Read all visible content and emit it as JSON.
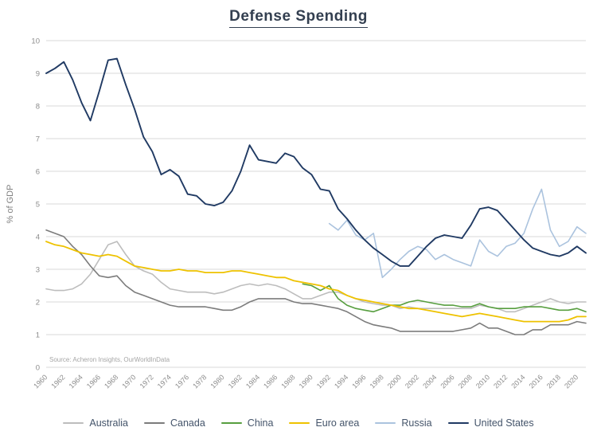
{
  "page": {
    "title": "Defense Spending",
    "source": "Source: Acheron Insights, OurWorldInData"
  },
  "chart_data": {
    "type": "line",
    "title": "Defense Spending",
    "xlabel": "",
    "ylabel": "% of GDP",
    "ylim": [
      0,
      10
    ],
    "y_ticks": [
      0,
      1,
      2,
      3,
      4,
      5,
      6,
      7,
      8,
      9,
      10
    ],
    "x_range": [
      1960,
      2021
    ],
    "x_tick_years": [
      1960,
      1962,
      1964,
      1966,
      1968,
      1970,
      1972,
      1974,
      1976,
      1978,
      1980,
      1982,
      1984,
      1986,
      1988,
      1990,
      1992,
      1994,
      1996,
      1998,
      2000,
      2002,
      2004,
      2006,
      2008,
      2010,
      2012,
      2014,
      2016,
      2018,
      2020
    ],
    "grid": "horizontal",
    "legend_position": "bottom",
    "appearance": {
      "grid_color": "#d9d9d9",
      "axis_text_color": "#8c8c8c",
      "ylabel_color": "#808080",
      "legend_text_color": "#44546a",
      "title_color": "#333f50",
      "source_color": "#a6a6a6"
    },
    "series": [
      {
        "name": "Australia",
        "color": "#bdbdbd",
        "stroke_width": 1.6,
        "start_year": 1960,
        "values": [
          2.4,
          2.35,
          2.35,
          2.4,
          2.55,
          2.85,
          3.3,
          3.75,
          3.85,
          3.45,
          3.1,
          2.95,
          2.85,
          2.6,
          2.4,
          2.35,
          2.3,
          2.3,
          2.3,
          2.25,
          2.3,
          2.4,
          2.5,
          2.55,
          2.5,
          2.55,
          2.5,
          2.4,
          2.25,
          2.1,
          2.1,
          2.2,
          2.3,
          2.3,
          2.2,
          2.1,
          2.0,
          1.95,
          1.9,
          1.9,
          1.8,
          1.85,
          1.8,
          1.8,
          1.8,
          1.8,
          1.8,
          1.8,
          1.8,
          1.9,
          1.85,
          1.8,
          1.7,
          1.7,
          1.8,
          1.9,
          2.0,
          2.1,
          2.0,
          1.95,
          2.0,
          2.0
        ]
      },
      {
        "name": "Canada",
        "color": "#7c7c7c",
        "stroke_width": 1.6,
        "start_year": 1960,
        "values": [
          4.2,
          4.1,
          4.0,
          3.7,
          3.45,
          3.1,
          2.8,
          2.75,
          2.8,
          2.5,
          2.3,
          2.2,
          2.1,
          2.0,
          1.9,
          1.85,
          1.85,
          1.85,
          1.85,
          1.8,
          1.75,
          1.75,
          1.85,
          2.0,
          2.1,
          2.1,
          2.1,
          2.1,
          2.0,
          1.95,
          1.95,
          1.9,
          1.85,
          1.8,
          1.7,
          1.55,
          1.4,
          1.3,
          1.25,
          1.2,
          1.1,
          1.1,
          1.1,
          1.1,
          1.1,
          1.1,
          1.1,
          1.15,
          1.2,
          1.35,
          1.2,
          1.2,
          1.1,
          1.0,
          1.0,
          1.15,
          1.15,
          1.3,
          1.3,
          1.3,
          1.4,
          1.35
        ]
      },
      {
        "name": "China",
        "color": "#579e3f",
        "stroke_width": 1.6,
        "start_year": 1989,
        "values": [
          2.55,
          2.5,
          2.35,
          2.5,
          2.1,
          1.9,
          1.8,
          1.75,
          1.7,
          1.8,
          1.9,
          1.9,
          2.0,
          2.05,
          2.0,
          1.95,
          1.9,
          1.9,
          1.85,
          1.85,
          1.95,
          1.85,
          1.8,
          1.8,
          1.8,
          1.85,
          1.85,
          1.85,
          1.8,
          1.75,
          1.75,
          1.8,
          1.7
        ]
      },
      {
        "name": "Euro area",
        "color": "#eec200",
        "stroke_width": 1.8,
        "start_year": 1960,
        "values": [
          3.85,
          3.75,
          3.7,
          3.6,
          3.5,
          3.45,
          3.4,
          3.45,
          3.4,
          3.25,
          3.1,
          3.05,
          3.0,
          2.95,
          2.95,
          3.0,
          2.95,
          2.95,
          2.9,
          2.9,
          2.9,
          2.95,
          2.95,
          2.9,
          2.85,
          2.8,
          2.75,
          2.75,
          2.65,
          2.6,
          2.55,
          2.5,
          2.4,
          2.35,
          2.2,
          2.1,
          2.05,
          2.0,
          1.95,
          1.9,
          1.85,
          1.8,
          1.8,
          1.75,
          1.7,
          1.65,
          1.6,
          1.55,
          1.6,
          1.65,
          1.6,
          1.55,
          1.5,
          1.45,
          1.4,
          1.4,
          1.4,
          1.4,
          1.4,
          1.45,
          1.55,
          1.55
        ]
      },
      {
        "name": "Russia",
        "color": "#abc3de",
        "stroke_width": 1.6,
        "start_year": 1992,
        "values": [
          4.4,
          4.2,
          4.5,
          4.05,
          3.9,
          4.1,
          2.75,
          3.0,
          3.3,
          3.55,
          3.7,
          3.6,
          3.3,
          3.45,
          3.3,
          3.2,
          3.1,
          3.9,
          3.55,
          3.4,
          3.7,
          3.8,
          4.1,
          4.85,
          5.45,
          4.2,
          3.7,
          3.85,
          4.3,
          4.1
        ]
      },
      {
        "name": "United States",
        "color": "#203a63",
        "stroke_width": 1.9,
        "start_year": 1960,
        "values": [
          9.0,
          9.15,
          9.35,
          8.8,
          8.1,
          7.55,
          8.45,
          9.4,
          9.45,
          8.65,
          7.9,
          7.05,
          6.6,
          5.9,
          6.05,
          5.85,
          5.3,
          5.25,
          5.0,
          4.95,
          5.05,
          5.4,
          6.0,
          6.8,
          6.35,
          6.3,
          6.25,
          6.55,
          6.45,
          6.1,
          5.9,
          5.45,
          5.4,
          4.85,
          4.55,
          4.2,
          3.9,
          3.65,
          3.45,
          3.25,
          3.1,
          3.1,
          3.4,
          3.7,
          3.95,
          4.05,
          4.0,
          3.95,
          4.35,
          4.85,
          4.9,
          4.8,
          4.5,
          4.2,
          3.9,
          3.65,
          3.55,
          3.45,
          3.4,
          3.5,
          3.7,
          3.5
        ]
      }
    ]
  }
}
